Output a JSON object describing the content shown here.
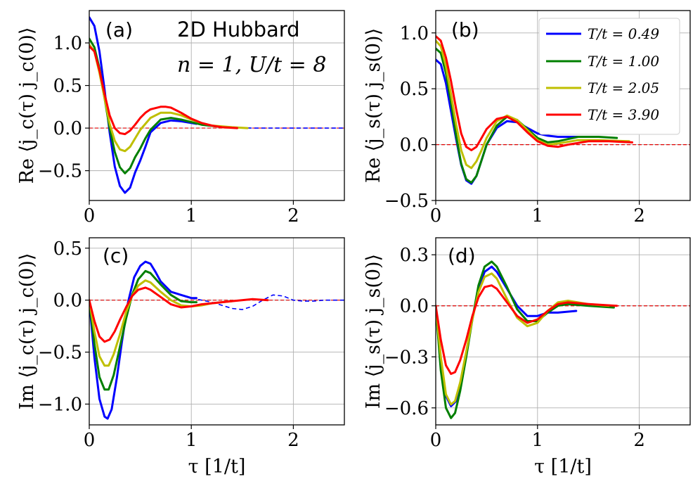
{
  "annotation": {
    "title": "2D Hubbard",
    "params": "n = 1, U/t = 8"
  },
  "legend": [
    {
      "label": "T/t = 0.49",
      "color": "#0000ff"
    },
    {
      "label": "T/t = 1.00",
      "color": "#007f00"
    },
    {
      "label": "T/t = 2.05",
      "color": "#bfbf00"
    },
    {
      "label": "T/t = 3.90",
      "color": "#ff0000"
    }
  ],
  "colors": {
    "zero_line": "#e00000",
    "extrapolation": "#0000ff"
  },
  "chart_data": [
    {
      "id": "a",
      "type": "line",
      "panel_label": "(a)",
      "xlabel": "",
      "ylabel": "Re ⟨j_c(τ) j_c(0)⟩",
      "xlim": [
        0,
        2.5
      ],
      "ylim": [
        -0.85,
        1.38
      ],
      "xticks": [
        0,
        1,
        2
      ],
      "yticks": [
        -0.5,
        0.0,
        0.5,
        1.0
      ],
      "ytick_labels": [
        "−0.5",
        "0.0",
        "0.5",
        "1.0"
      ],
      "grid": true,
      "series": [
        {
          "name": "T/t = 0.49",
          "color": "#0000ff",
          "x": [
            0,
            0.05,
            0.1,
            0.15,
            0.2,
            0.25,
            0.3,
            0.35,
            0.4,
            0.45,
            0.5,
            0.55,
            0.6,
            0.7,
            0.8,
            0.9,
            1.0,
            1.05
          ],
          "y": [
            1.3,
            1.2,
            0.9,
            0.45,
            -0.05,
            -0.45,
            -0.68,
            -0.76,
            -0.7,
            -0.52,
            -0.38,
            -0.22,
            -0.05,
            0.06,
            0.09,
            0.08,
            0.06,
            0.05
          ]
        },
        {
          "name": "T/t = 1.00",
          "color": "#007f00",
          "x": [
            0,
            0.05,
            0.1,
            0.15,
            0.2,
            0.25,
            0.3,
            0.35,
            0.4,
            0.45,
            0.5,
            0.55,
            0.6,
            0.7,
            0.8,
            0.9,
            1.0,
            1.1,
            1.25
          ],
          "y": [
            1.05,
            0.95,
            0.7,
            0.35,
            0.0,
            -0.28,
            -0.46,
            -0.53,
            -0.47,
            -0.34,
            -0.24,
            -0.12,
            -0.02,
            0.1,
            0.12,
            0.1,
            0.07,
            0.04,
            0.02
          ]
        },
        {
          "name": "T/t = 2.05",
          "color": "#bfbf00",
          "x": [
            0,
            0.05,
            0.1,
            0.15,
            0.2,
            0.25,
            0.3,
            0.35,
            0.4,
            0.45,
            0.5,
            0.6,
            0.7,
            0.8,
            0.9,
            1.0,
            1.1,
            1.2,
            1.4,
            1.55
          ],
          "y": [
            0.98,
            0.9,
            0.65,
            0.35,
            0.05,
            -0.15,
            -0.25,
            -0.27,
            -0.22,
            -0.12,
            -0.02,
            0.12,
            0.18,
            0.18,
            0.15,
            0.1,
            0.06,
            0.03,
            0.01,
            0.0
          ]
        },
        {
          "name": "T/t = 3.90",
          "color": "#ff0000",
          "x": [
            0,
            0.05,
            0.1,
            0.15,
            0.2,
            0.25,
            0.3,
            0.35,
            0.4,
            0.45,
            0.5,
            0.55,
            0.6,
            0.7,
            0.75,
            0.8,
            0.9,
            1.0,
            1.1,
            1.2,
            1.3,
            1.45
          ],
          "y": [
            0.96,
            0.9,
            0.68,
            0.4,
            0.15,
            0.0,
            -0.06,
            -0.07,
            -0.03,
            0.04,
            0.12,
            0.18,
            0.22,
            0.25,
            0.25,
            0.24,
            0.18,
            0.11,
            0.06,
            0.03,
            0.01,
            0.0
          ]
        }
      ],
      "extrapolation": {
        "color": "#0000ff",
        "x": [
          1.0,
          1.2,
          1.4,
          1.6,
          1.8,
          2.0,
          2.2,
          2.5
        ],
        "y": [
          0.06,
          0.03,
          0.01,
          0.0,
          0.0,
          0.0,
          0.0,
          0.0
        ]
      }
    },
    {
      "id": "b",
      "type": "line",
      "panel_label": "(b)",
      "xlabel": "",
      "ylabel": "Re ⟨j_s(τ) j_s(0)⟩",
      "xlim": [
        0,
        2.5
      ],
      "ylim": [
        -0.5,
        1.2
      ],
      "xticks": [
        0,
        1,
        2
      ],
      "yticks": [
        -0.5,
        0.0,
        0.5,
        1.0
      ],
      "ytick_labels": [
        "−0.5",
        "0.0",
        "0.5",
        "1.0"
      ],
      "grid": true,
      "series": [
        {
          "name": "T/t = 0.49",
          "color": "#0000ff",
          "x": [
            0,
            0.05,
            0.1,
            0.15,
            0.2,
            0.25,
            0.3,
            0.35,
            0.4,
            0.45,
            0.5,
            0.6,
            0.7,
            0.8,
            0.9,
            1.0,
            1.1,
            1.2,
            1.3,
            1.45
          ],
          "y": [
            0.76,
            0.72,
            0.55,
            0.3,
            0.05,
            -0.18,
            -0.32,
            -0.35,
            -0.28,
            -0.14,
            0.0,
            0.15,
            0.21,
            0.2,
            0.15,
            0.1,
            0.08,
            0.07,
            0.07,
            0.07
          ]
        },
        {
          "name": "T/t = 1.00",
          "color": "#007f00",
          "x": [
            0,
            0.05,
            0.1,
            0.15,
            0.2,
            0.25,
            0.3,
            0.35,
            0.4,
            0.45,
            0.5,
            0.6,
            0.7,
            0.8,
            0.9,
            1.0,
            1.1,
            1.2,
            1.4,
            1.6,
            1.78
          ],
          "y": [
            0.86,
            0.82,
            0.64,
            0.38,
            0.08,
            -0.17,
            -0.31,
            -0.34,
            -0.28,
            -0.14,
            0.0,
            0.17,
            0.25,
            0.22,
            0.14,
            0.06,
            0.02,
            0.03,
            0.07,
            0.07,
            0.06
          ]
        },
        {
          "name": "T/t = 2.05",
          "color": "#bfbf00",
          "x": [
            0,
            0.05,
            0.1,
            0.15,
            0.2,
            0.25,
            0.3,
            0.35,
            0.4,
            0.45,
            0.5,
            0.6,
            0.7,
            0.8,
            0.9,
            1.0,
            1.1,
            1.2,
            1.4,
            1.6,
            1.9
          ],
          "y": [
            0.93,
            0.88,
            0.7,
            0.45,
            0.18,
            -0.05,
            -0.18,
            -0.21,
            -0.15,
            -0.05,
            0.06,
            0.21,
            0.26,
            0.22,
            0.13,
            0.04,
            0.0,
            0.01,
            0.04,
            0.04,
            0.03
          ]
        },
        {
          "name": "T/t = 3.90",
          "color": "#ff0000",
          "x": [
            0,
            0.05,
            0.1,
            0.15,
            0.2,
            0.25,
            0.3,
            0.35,
            0.4,
            0.45,
            0.5,
            0.6,
            0.7,
            0.8,
            0.9,
            1.0,
            1.1,
            1.2,
            1.3,
            1.5,
            1.7,
            1.93
          ],
          "y": [
            0.97,
            0.93,
            0.78,
            0.57,
            0.32,
            0.1,
            -0.02,
            -0.05,
            -0.02,
            0.06,
            0.14,
            0.23,
            0.25,
            0.2,
            0.11,
            0.03,
            -0.01,
            -0.02,
            0.0,
            0.03,
            0.03,
            0.02
          ]
        }
      ]
    },
    {
      "id": "c",
      "type": "line",
      "panel_label": "(c)",
      "xlabel": "τ [1/t]",
      "ylabel": "Im ⟨j_c(τ) j_c(0)⟩",
      "xlim": [
        0,
        2.5
      ],
      "ylim": [
        -1.2,
        0.6
      ],
      "xticks": [
        0,
        1,
        2
      ],
      "yticks": [
        -1.0,
        -0.5,
        0.0,
        0.5
      ],
      "ytick_labels": [
        "−1.0",
        "−0.5",
        "0.0",
        "0.5"
      ],
      "grid": true,
      "series": [
        {
          "name": "T/t = 0.49",
          "color": "#0000ff",
          "x": [
            0,
            0.05,
            0.1,
            0.15,
            0.18,
            0.22,
            0.27,
            0.32,
            0.38,
            0.44,
            0.5,
            0.55,
            0.6,
            0.65,
            0.7,
            0.8,
            0.9,
            1.0,
            1.05
          ],
          "y": [
            0.0,
            -0.55,
            -0.95,
            -1.12,
            -1.14,
            -1.05,
            -0.75,
            -0.4,
            -0.02,
            0.22,
            0.33,
            0.37,
            0.35,
            0.27,
            0.18,
            0.08,
            0.05,
            0.02,
            0.02
          ]
        },
        {
          "name": "T/t = 1.00",
          "color": "#007f00",
          "x": [
            0,
            0.05,
            0.1,
            0.15,
            0.19,
            0.24,
            0.3,
            0.36,
            0.42,
            0.48,
            0.55,
            0.6,
            0.7,
            0.8,
            0.9,
            1.0,
            1.05
          ],
          "y": [
            0.0,
            -0.42,
            -0.74,
            -0.86,
            -0.86,
            -0.72,
            -0.45,
            -0.18,
            0.05,
            0.2,
            0.28,
            0.26,
            0.15,
            0.05,
            -0.01,
            -0.02,
            -0.02
          ]
        },
        {
          "name": "T/t = 2.05",
          "color": "#bfbf00",
          "x": [
            0,
            0.05,
            0.1,
            0.15,
            0.19,
            0.24,
            0.3,
            0.36,
            0.42,
            0.48,
            0.55,
            0.6,
            0.7,
            0.8,
            0.9,
            1.0,
            1.1,
            1.2,
            1.4
          ],
          "y": [
            0.0,
            -0.3,
            -0.54,
            -0.63,
            -0.63,
            -0.52,
            -0.33,
            -0.12,
            0.04,
            0.14,
            0.19,
            0.17,
            0.08,
            0.0,
            -0.05,
            -0.06,
            -0.05,
            -0.03,
            -0.01
          ]
        },
        {
          "name": "T/t = 3.90",
          "color": "#ff0000",
          "x": [
            0,
            0.05,
            0.1,
            0.15,
            0.2,
            0.25,
            0.3,
            0.36,
            0.42,
            0.48,
            0.55,
            0.6,
            0.7,
            0.8,
            0.9,
            1.0,
            1.1,
            1.2,
            1.4,
            1.6,
            1.75
          ],
          "y": [
            0.0,
            -0.2,
            -0.35,
            -0.4,
            -0.38,
            -0.3,
            -0.19,
            -0.07,
            0.04,
            0.1,
            0.12,
            0.1,
            0.03,
            -0.04,
            -0.07,
            -0.06,
            -0.04,
            -0.03,
            -0.01,
            0.01,
            0.0
          ]
        }
      ],
      "extrapolation": {
        "color": "#0000ff",
        "x": [
          1.0,
          1.2,
          1.4,
          1.5,
          1.6,
          1.7,
          1.8,
          1.9,
          2.0,
          2.1,
          2.2,
          2.3,
          2.5
        ],
        "y": [
          0.02,
          -0.02,
          -0.08,
          -0.09,
          -0.06,
          0.0,
          0.05,
          0.04,
          0.0,
          -0.01,
          -0.01,
          0.0,
          0.0
        ]
      }
    },
    {
      "id": "d",
      "type": "line",
      "panel_label": "(d)",
      "xlabel": "τ [1/t]",
      "ylabel": "Im ⟨j_s(τ) j_s(0)⟩",
      "xlim": [
        0,
        2.5
      ],
      "ylim": [
        -0.7,
        0.4
      ],
      "xticks": [
        0,
        1,
        2
      ],
      "yticks": [
        -0.6,
        -0.3,
        0.0,
        0.3
      ],
      "ytick_labels": [
        "−0.6",
        "−0.3",
        "0.0",
        "0.3"
      ],
      "grid": true,
      "series": [
        {
          "name": "T/t = 0.49",
          "color": "#0000ff",
          "x": [
            0,
            0.05,
            0.1,
            0.15,
            0.2,
            0.25,
            0.3,
            0.36,
            0.42,
            0.48,
            0.55,
            0.6,
            0.7,
            0.8,
            0.9,
            1.0,
            1.1,
            1.2,
            1.38
          ],
          "y": [
            0.0,
            -0.35,
            -0.53,
            -0.59,
            -0.56,
            -0.45,
            -0.28,
            -0.08,
            0.1,
            0.2,
            0.23,
            0.2,
            0.1,
            0.0,
            -0.06,
            -0.06,
            -0.04,
            -0.04,
            -0.03
          ]
        },
        {
          "name": "T/t = 1.00",
          "color": "#007f00",
          "x": [
            0,
            0.05,
            0.1,
            0.15,
            0.19,
            0.24,
            0.3,
            0.36,
            0.42,
            0.48,
            0.55,
            0.6,
            0.7,
            0.8,
            0.9,
            1.0,
            1.1,
            1.2,
            1.3,
            1.5,
            1.75
          ],
          "y": [
            0.0,
            -0.38,
            -0.6,
            -0.66,
            -0.63,
            -0.5,
            -0.3,
            -0.08,
            0.12,
            0.23,
            0.26,
            0.23,
            0.11,
            -0.02,
            -0.09,
            -0.09,
            -0.04,
            0.0,
            0.01,
            0.0,
            -0.01
          ]
        },
        {
          "name": "T/t = 2.05",
          "color": "#bfbf00",
          "x": [
            0,
            0.05,
            0.1,
            0.15,
            0.19,
            0.24,
            0.3,
            0.36,
            0.42,
            0.48,
            0.55,
            0.6,
            0.7,
            0.8,
            0.9,
            1.0,
            1.1,
            1.2,
            1.3,
            1.5,
            1.7
          ],
          "y": [
            0.0,
            -0.3,
            -0.52,
            -0.58,
            -0.56,
            -0.45,
            -0.27,
            -0.08,
            0.08,
            0.17,
            0.19,
            0.16,
            0.04,
            -0.07,
            -0.12,
            -0.1,
            -0.03,
            0.02,
            0.03,
            0.01,
            0.0
          ]
        },
        {
          "name": "T/t = 3.90",
          "color": "#ff0000",
          "x": [
            0,
            0.05,
            0.1,
            0.15,
            0.19,
            0.24,
            0.3,
            0.36,
            0.42,
            0.48,
            0.55,
            0.6,
            0.7,
            0.8,
            0.9,
            1.0,
            1.1,
            1.2,
            1.3,
            1.5,
            1.78
          ],
          "y": [
            0.0,
            -0.2,
            -0.35,
            -0.4,
            -0.39,
            -0.32,
            -0.2,
            -0.06,
            0.05,
            0.11,
            0.12,
            0.1,
            0.02,
            -0.06,
            -0.1,
            -0.08,
            -0.03,
            0.01,
            0.02,
            0.01,
            0.0
          ]
        }
      ]
    }
  ]
}
